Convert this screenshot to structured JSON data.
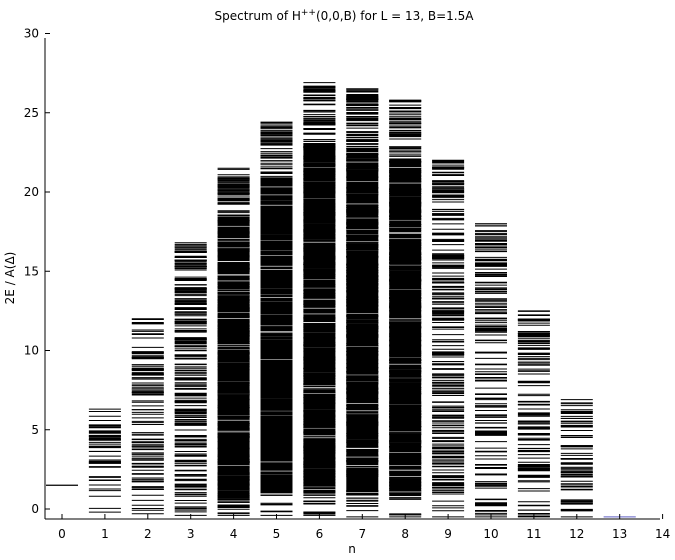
{
  "chart_data": {
    "type": "scatter",
    "marker": "horizontal-line",
    "title_main": "Spectrum of H",
    "title_sup": "++",
    "title_rest": "(0,0,B) for L = 13, B=1.5A",
    "xlabel": "n",
    "ylabel": "2E / A(Δ)",
    "xlim": [
      -0.5,
      14
    ],
    "ylim": [
      -0.6,
      30
    ],
    "xticks": [
      0,
      1,
      2,
      3,
      4,
      5,
      6,
      7,
      8,
      9,
      10,
      11,
      12,
      13,
      14
    ],
    "yticks": [
      0,
      5,
      10,
      15,
      20,
      25,
      30
    ],
    "grid": false,
    "legend": "none",
    "levels": [
      {
        "n": 0,
        "min": 1.5,
        "max": 1.5,
        "density": 0,
        "fill": false
      },
      {
        "n": 1,
        "min": -0.2,
        "max": 6.3,
        "density": 0.08,
        "fill": false
      },
      {
        "n": 2,
        "min": -0.3,
        "max": 12.0,
        "density": 0.3,
        "fill": false
      },
      {
        "n": 3,
        "min": -0.4,
        "max": 16.8,
        "density": 0.65,
        "fill": false
      },
      {
        "n": 4,
        "min": -0.4,
        "max": 21.5,
        "density": 0.85,
        "fill": true
      },
      {
        "n": 5,
        "min": -0.4,
        "max": 24.4,
        "density": 0.95,
        "fill": true
      },
      {
        "n": 6,
        "min": -0.4,
        "max": 26.9,
        "density": 0.97,
        "fill": true
      },
      {
        "n": 7,
        "min": -0.5,
        "max": 26.5,
        "density": 0.97,
        "fill": true
      },
      {
        "n": 8,
        "min": -0.5,
        "max": 25.8,
        "density": 0.92,
        "fill": true
      },
      {
        "n": 9,
        "min": -0.5,
        "max": 22.0,
        "density": 0.75,
        "fill": false
      },
      {
        "n": 10,
        "min": -0.5,
        "max": 18.0,
        "density": 0.45,
        "fill": false
      },
      {
        "n": 11,
        "min": -0.5,
        "max": 12.5,
        "density": 0.3,
        "fill": false
      },
      {
        "n": 12,
        "min": -0.5,
        "max": 6.9,
        "density": 0.15,
        "fill": false
      },
      {
        "n": 13,
        "min": -0.5,
        "max": -0.5,
        "density": 0,
        "fill": false
      }
    ],
    "colors": {
      "levels": "#000000",
      "last_level": "#7777cc",
      "axes": "#000000"
    }
  }
}
